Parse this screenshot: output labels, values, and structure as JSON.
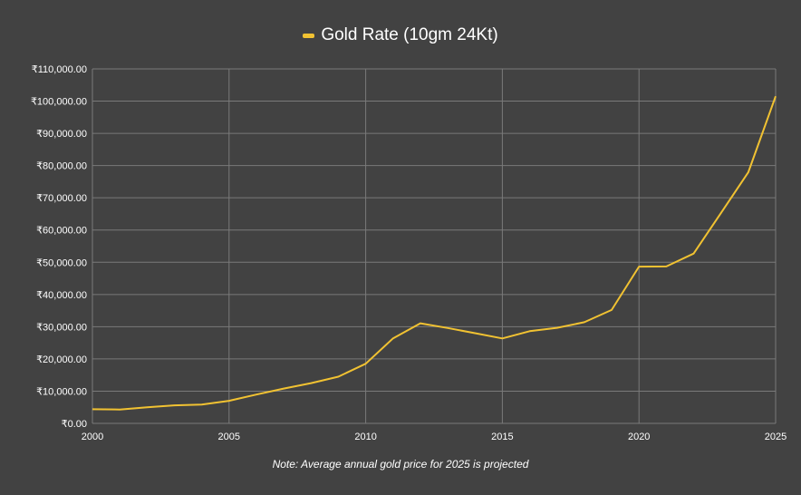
{
  "chart_data": {
    "type": "line",
    "series": [
      {
        "name": "Gold Rate (10gm 24Kt)",
        "x": [
          2000,
          2001,
          2002,
          2003,
          2004,
          2005,
          2006,
          2007,
          2008,
          2009,
          2010,
          2011,
          2012,
          2013,
          2014,
          2015,
          2016,
          2017,
          2018,
          2019,
          2020,
          2021,
          2022,
          2023,
          2024,
          2025
        ],
        "values": [
          4400,
          4300,
          5000,
          5600,
          5850,
          7000,
          8950,
          10800,
          12500,
          14500,
          18500,
          26400,
          31050,
          29600,
          28000,
          26350,
          28600,
          29650,
          31400,
          35200,
          48650,
          48700,
          52700,
          65300,
          77900,
          101500
        ]
      }
    ],
    "x_ticks": [
      "2000",
      "2005",
      "2010",
      "2015",
      "2020",
      "2025"
    ],
    "x_tick_values": [
      2000,
      2005,
      2010,
      2015,
      2020,
      2025
    ],
    "y_ticks": [
      "₹0.00",
      "₹10,000.00",
      "₹20,000.00",
      "₹30,000.00",
      "₹40,000.00",
      "₹50,000.00",
      "₹60,000.00",
      "₹70,000.00",
      "₹80,000.00",
      "₹90,000.00",
      "₹100,000.00",
      "₹110,000.00"
    ],
    "y_tick_values": [
      0,
      10000,
      20000,
      30000,
      40000,
      50000,
      60000,
      70000,
      80000,
      90000,
      100000,
      110000
    ],
    "xlim": [
      2000,
      2025
    ],
    "ylim": [
      0,
      110000
    ],
    "grid": true,
    "legend_position": "top-center",
    "note": "Note: Average annual gold price for 2025 is projected",
    "colors": {
      "background": "#424242",
      "line": "#f1c232",
      "grid": "#7a7a7a",
      "text": "#ffffff"
    }
  }
}
